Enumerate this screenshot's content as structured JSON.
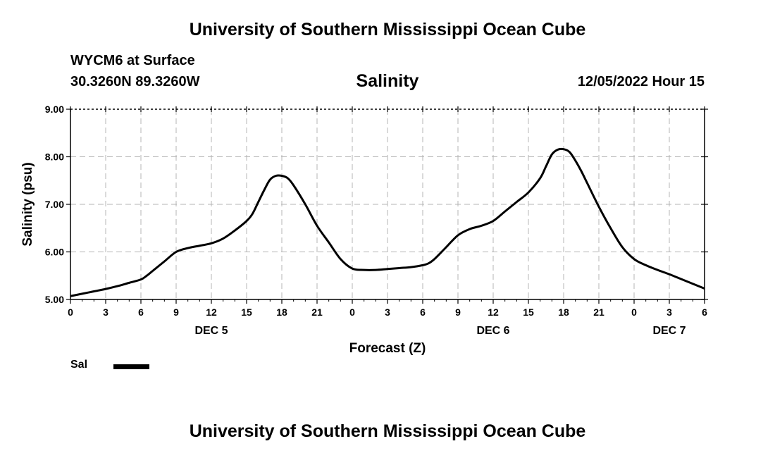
{
  "header": {
    "title": "University of Southern Mississippi Ocean Cube",
    "station": "WYCM6 at Surface",
    "coords": "30.3260N  89.3260W",
    "run_time": "12/05/2022 Hour 15"
  },
  "footer": {
    "title": "University of Southern Mississippi Ocean Cube"
  },
  "legend": {
    "label": "Sal",
    "color": "#000000"
  },
  "chart_data": {
    "type": "line",
    "title": "Salinity",
    "xlabel": "Forecast (Z)",
    "ylabel": "Salinity (psu)",
    "xlim": [
      0,
      54
    ],
    "ylim": [
      5.0,
      9.0
    ],
    "yticks": [
      5.0,
      6.0,
      7.0,
      8.0,
      9.0
    ],
    "ytick_labels": [
      "5.00",
      "6.00",
      "7.00",
      "8.00",
      "9.00"
    ],
    "xticks": [
      0,
      3,
      6,
      9,
      12,
      15,
      18,
      21,
      24,
      27,
      30,
      33,
      36,
      39,
      42,
      45,
      48,
      51,
      54
    ],
    "xtick_labels": [
      "0",
      "3",
      "6",
      "9",
      "12",
      "15",
      "18",
      "21",
      "0",
      "3",
      "6",
      "9",
      "12",
      "15",
      "18",
      "21",
      "0",
      "3",
      "6"
    ],
    "date_labels": [
      {
        "x": 12,
        "label": "DEC 5"
      },
      {
        "x": 36,
        "label": "DEC 6"
      },
      {
        "x": 51,
        "label": "DEC 7"
      }
    ],
    "grid": true,
    "series": [
      {
        "name": "Sal",
        "x": [
          0,
          1,
          2,
          3,
          4,
          5,
          6,
          6.5,
          7,
          8,
          9,
          10,
          11,
          12,
          13,
          14,
          15,
          15.5,
          16,
          16.5,
          17,
          17.5,
          18,
          18.5,
          19,
          20,
          21,
          22,
          23,
          24,
          25,
          26,
          27,
          28,
          29,
          30,
          30.5,
          31,
          32,
          33,
          34,
          35,
          36,
          37,
          38,
          39,
          40,
          40.5,
          41,
          41.5,
          42,
          42.5,
          43,
          43.5,
          44,
          45,
          46,
          47,
          48,
          49,
          50,
          51,
          52,
          53,
          54
        ],
        "y": [
          5.07,
          5.12,
          5.17,
          5.22,
          5.28,
          5.35,
          5.42,
          5.5,
          5.6,
          5.8,
          6.0,
          6.08,
          6.13,
          6.18,
          6.28,
          6.45,
          6.65,
          6.8,
          7.05,
          7.3,
          7.52,
          7.6,
          7.6,
          7.55,
          7.4,
          7.0,
          6.55,
          6.2,
          5.85,
          5.65,
          5.62,
          5.62,
          5.64,
          5.66,
          5.68,
          5.72,
          5.76,
          5.85,
          6.1,
          6.35,
          6.48,
          6.55,
          6.65,
          6.85,
          7.05,
          7.25,
          7.55,
          7.8,
          8.05,
          8.15,
          8.16,
          8.1,
          7.92,
          7.7,
          7.45,
          6.95,
          6.5,
          6.1,
          5.85,
          5.72,
          5.62,
          5.53,
          5.43,
          5.33,
          5.23
        ]
      }
    ]
  }
}
